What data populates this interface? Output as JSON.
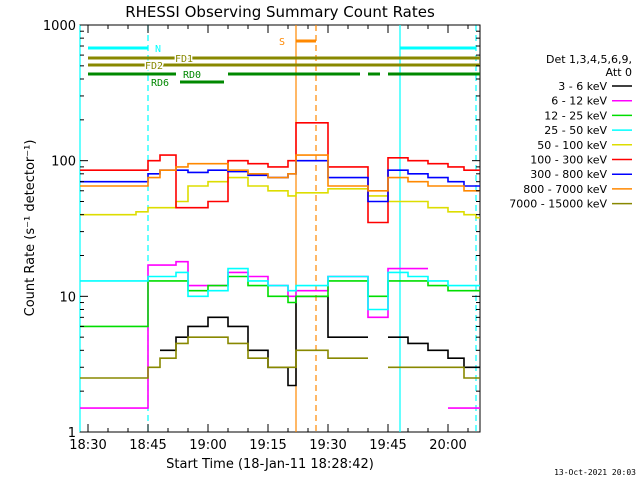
{
  "chart_data": {
    "type": "line",
    "title": "RHESSI Observing Summary Count Rates",
    "xlabel": "Start Time (18-Jan-11 18:28:42)",
    "ylabel": "Count Rate (s⁻¹ detector⁻¹)",
    "y_scale": "log",
    "ylim": [
      1,
      1000
    ],
    "xlim": [
      "18:28",
      "20:08"
    ],
    "x_tick_labels": [
      "18:30",
      "18:45",
      "19:00",
      "19:15",
      "19:30",
      "19:45",
      "20:00"
    ],
    "y_tick_labels": [
      "1",
      "10",
      "100",
      "1000"
    ],
    "footer": "13-Oct-2021 20:03",
    "legend": {
      "position": "right",
      "header": [
        "Det 1,3,4,5,6,9,",
        "Att 0"
      ],
      "entries": [
        {
          "label": "3 - 6 keV",
          "color": "#000000"
        },
        {
          "label": "6 - 12 keV",
          "color": "#ff00ff"
        },
        {
          "label": "12 - 25 keV",
          "color": "#00dd00"
        },
        {
          "label": "25 - 50 keV",
          "color": "#00ffff"
        },
        {
          "label": "50 - 100 keV",
          "color": "#dddd00"
        },
        {
          "label": "100 - 300 keV",
          "color": "#ff0000"
        },
        {
          "label": "300 - 800 keV",
          "color": "#0000ff"
        },
        {
          "label": "800 - 7000 keV",
          "color": "#ff8800"
        },
        {
          "label": "7000 - 15000 keV",
          "color": "#888800"
        }
      ]
    },
    "flags": [
      {
        "label": "N",
        "color": "#00ffff",
        "segments": [
          [
            "18:30",
            "18:45"
          ],
          [
            "19:48",
            "20:07"
          ]
        ]
      },
      {
        "label": "S",
        "color": "#ff8800",
        "segments": [
          [
            "19:22",
            "19:27"
          ]
        ]
      },
      {
        "label": "FD1",
        "color": "#888800",
        "segments": [
          [
            "18:30",
            "20:08"
          ]
        ]
      },
      {
        "label": "FD2",
        "color": "#888800",
        "segments": [
          [
            "18:30",
            "20:08"
          ]
        ]
      },
      {
        "label": "RD0",
        "color": "#008800",
        "segments": [
          [
            "18:30",
            "18:52"
          ],
          [
            "19:05",
            "19:38"
          ],
          [
            "19:40",
            "19:43"
          ],
          [
            "19:45",
            "20:08"
          ]
        ]
      },
      {
        "label": "RD6",
        "color": "#008800",
        "segments": [
          [
            "18:53",
            "19:04"
          ]
        ]
      }
    ],
    "markers": [
      {
        "time": "18:28",
        "color": "#00ffff",
        "style": "solid"
      },
      {
        "time": "18:45",
        "color": "#00ffff",
        "style": "dashed"
      },
      {
        "time": "19:48",
        "color": "#00ffff",
        "style": "solid"
      },
      {
        "time": "20:07",
        "color": "#00ffff",
        "style": "dashed"
      },
      {
        "time": "19:22",
        "color": "#ff8800",
        "style": "solid"
      },
      {
        "time": "19:27",
        "color": "#ff8800",
        "style": "dashed"
      }
    ],
    "x": [
      "18:28",
      "18:35",
      "18:42",
      "18:45",
      "18:48",
      "18:52",
      "18:55",
      "19:00",
      "19:05",
      "19:10",
      "19:15",
      "19:20",
      "19:22",
      "19:30",
      "19:35",
      "19:38",
      "19:40",
      "19:43",
      "19:45",
      "19:50",
      "19:55",
      "20:00",
      "20:04",
      "20:07"
    ],
    "series": [
      {
        "name": "3 - 6 keV",
        "values": [
          null,
          null,
          null,
          null,
          4,
          5,
          6,
          7,
          6,
          4,
          3,
          2.2,
          10,
          5,
          5,
          5,
          null,
          null,
          5,
          4.5,
          4,
          3.5,
          3,
          3
        ]
      },
      {
        "name": "6 - 12 keV",
        "values": [
          1.5,
          1.5,
          1.5,
          17,
          17,
          18,
          12,
          12,
          15,
          14,
          12,
          10,
          11,
          14,
          14,
          14,
          7,
          7,
          16,
          16,
          null,
          1.5,
          1.5,
          1.5
        ]
      },
      {
        "name": "12 - 25 keV",
        "values": [
          6,
          6,
          6,
          13,
          13,
          13,
          11,
          12,
          14,
          12,
          10,
          9,
          10,
          13,
          13,
          13,
          10,
          10,
          13,
          13,
          12,
          11,
          11,
          11
        ]
      },
      {
        "name": "25 - 50 keV",
        "values": [
          13,
          13,
          13,
          14,
          14,
          15,
          10,
          11,
          16,
          13,
          12,
          11,
          12,
          14,
          14,
          14,
          8,
          8,
          15,
          14,
          13,
          12,
          12,
          12
        ]
      },
      {
        "name": "50 - 100 keV",
        "values": [
          40,
          40,
          42,
          45,
          45,
          50,
          65,
          70,
          75,
          65,
          60,
          55,
          58,
          62,
          62,
          62,
          55,
          55,
          50,
          50,
          45,
          42,
          40,
          38
        ]
      },
      {
        "name": "100 - 300 keV",
        "values": [
          85,
          85,
          85,
          100,
          110,
          45,
          45,
          50,
          100,
          95,
          90,
          100,
          190,
          90,
          90,
          90,
          35,
          35,
          105,
          100,
          95,
          90,
          85,
          85
        ]
      },
      {
        "name": "300 - 800 keV",
        "values": [
          70,
          70,
          70,
          80,
          85,
          85,
          82,
          85,
          83,
          78,
          75,
          80,
          100,
          75,
          75,
          75,
          50,
          50,
          85,
          80,
          75,
          70,
          65,
          65
        ]
      },
      {
        "name": "800 - 7000 keV",
        "values": [
          65,
          65,
          65,
          75,
          85,
          90,
          95,
          95,
          85,
          80,
          75,
          80,
          110,
          65,
          65,
          65,
          60,
          60,
          75,
          70,
          65,
          65,
          60,
          60
        ]
      },
      {
        "name": "7000 - 15000 keV",
        "values": [
          2.5,
          2.5,
          2.5,
          3,
          3.5,
          4.5,
          5,
          5,
          4.5,
          3.5,
          3,
          3,
          4,
          3.5,
          3.5,
          3.5,
          null,
          null,
          3,
          3,
          3,
          3,
          2.5,
          2.5
        ]
      }
    ]
  }
}
